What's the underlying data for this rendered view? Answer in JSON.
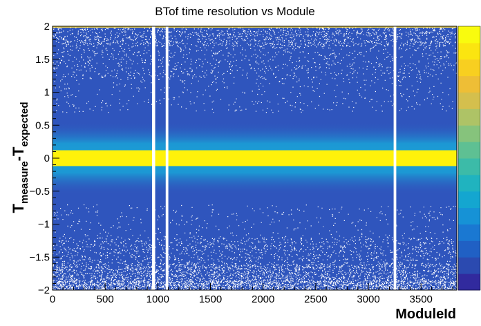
{
  "chart_data": {
    "type": "heatmap",
    "title": "BTof time resolution vs Module",
    "xlabel": "ModuleId",
    "ylabel": {
      "base1": "T",
      "sub1": "measure",
      "separator": "-",
      "base2": "T",
      "sub2": "expected"
    },
    "xlim": [
      0,
      3840
    ],
    "ylim": [
      -2,
      2
    ],
    "x_ticks": [
      "0",
      "500",
      "1000",
      "1500",
      "2000",
      "2500",
      "3000",
      "3500"
    ],
    "x_tick_values": [
      0,
      500,
      1000,
      1500,
      2000,
      2500,
      3000,
      3500
    ],
    "y_ticks": [
      "−2",
      "−1.5",
      "−1",
      "−0.5",
      "0",
      "0.5",
      "1",
      "1.5",
      "2"
    ],
    "y_tick_values": [
      -2,
      -1.5,
      -1,
      -0.5,
      0,
      0.5,
      1,
      1.5,
      2
    ],
    "band_center": 0,
    "band_core_halfwidth": 0.12,
    "band_halo_halfwidth": 0.55,
    "empty_module_ranges": [
      [
        945,
        975
      ],
      [
        1075,
        1100
      ],
      [
        3240,
        3265
      ]
    ],
    "colormap": [
      "#312a9e",
      "#2b4ab0",
      "#2060c4",
      "#1a78d2",
      "#1692d6",
      "#14a6d0",
      "#20b3bf",
      "#3cbba8",
      "#5ec093",
      "#86c37c",
      "#aec366",
      "#d4bf4d",
      "#eebe36",
      "#f8cf20",
      "#fbe510",
      "#f9fb0e"
    ],
    "colors": {
      "background": "#2f55bd",
      "noise": "#ffffff",
      "halo": "#1a9fd6",
      "core": "#fff20a",
      "gap": "#ffffff"
    },
    "grid": false,
    "legend": "none"
  }
}
